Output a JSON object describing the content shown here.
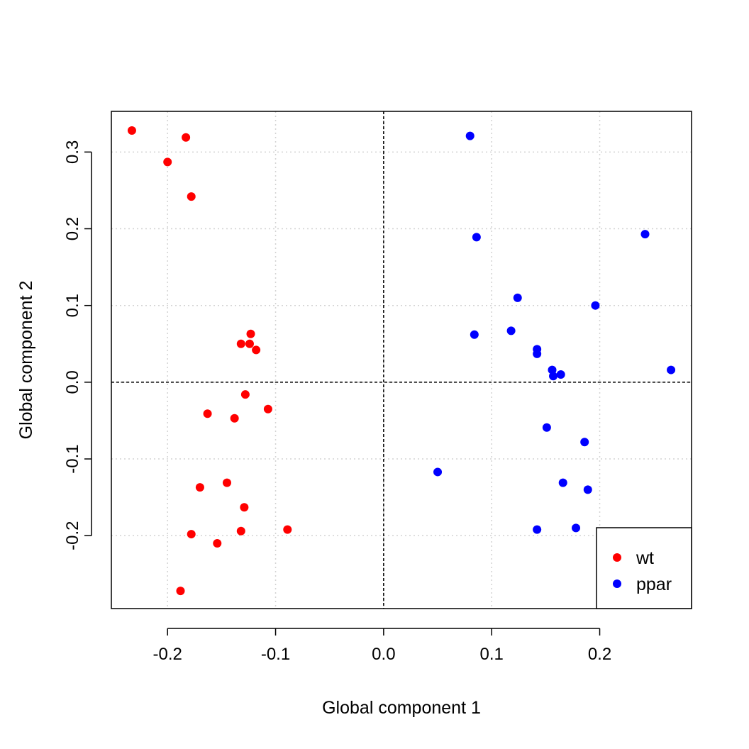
{
  "chart_data": {
    "type": "scatter",
    "title": "",
    "xlabel": "Global component 1",
    "ylabel": "Global component 2",
    "xlim": [
      -0.252,
      0.285
    ],
    "ylim": [
      -0.295,
      0.353
    ],
    "xticks": [
      -0.2,
      -0.1,
      0.0,
      0.1,
      0.2
    ],
    "xtick_labels": [
      "-0.2",
      "-0.1",
      "0.0",
      "0.1",
      "0.2"
    ],
    "yticks": [
      -0.2,
      -0.1,
      0.0,
      0.1,
      0.2,
      0.3
    ],
    "ytick_labels": [
      "-0.2",
      "-0.1",
      "0.0",
      "0.1",
      "0.2",
      "0.3"
    ],
    "grid": true,
    "reference_lines": {
      "x": 0.0,
      "y": 0.0
    },
    "legend_position": "bottom-right",
    "series": [
      {
        "name": "wt",
        "color": "#FF0000",
        "points": [
          [
            -0.233,
            0.328
          ],
          [
            -0.183,
            0.319
          ],
          [
            -0.2,
            0.287
          ],
          [
            -0.178,
            0.242
          ],
          [
            -0.123,
            0.063
          ],
          [
            -0.124,
            0.05
          ],
          [
            -0.132,
            0.05
          ],
          [
            -0.118,
            0.042
          ],
          [
            -0.128,
            -0.016
          ],
          [
            -0.107,
            -0.035
          ],
          [
            -0.163,
            -0.041
          ],
          [
            -0.138,
            -0.047
          ],
          [
            -0.145,
            -0.131
          ],
          [
            -0.17,
            -0.137
          ],
          [
            -0.129,
            -0.163
          ],
          [
            -0.089,
            -0.192
          ],
          [
            -0.132,
            -0.194
          ],
          [
            -0.178,
            -0.198
          ],
          [
            -0.154,
            -0.21
          ],
          [
            -0.188,
            -0.272
          ]
        ]
      },
      {
        "name": "ppar",
        "color": "#0000FF",
        "points": [
          [
            0.08,
            0.321
          ],
          [
            0.086,
            0.189
          ],
          [
            0.242,
            0.193
          ],
          [
            0.124,
            0.11
          ],
          [
            0.196,
            0.1
          ],
          [
            0.084,
            0.062
          ],
          [
            0.118,
            0.067
          ],
          [
            0.142,
            0.043
          ],
          [
            0.142,
            0.037
          ],
          [
            0.156,
            0.016
          ],
          [
            0.164,
            0.01
          ],
          [
            0.157,
            0.008
          ],
          [
            0.266,
            0.016
          ],
          [
            0.151,
            -0.059
          ],
          [
            0.186,
            -0.078
          ],
          [
            0.05,
            -0.117
          ],
          [
            0.166,
            -0.131
          ],
          [
            0.189,
            -0.14
          ],
          [
            0.142,
            -0.192
          ],
          [
            0.178,
            -0.19
          ]
        ]
      }
    ]
  }
}
